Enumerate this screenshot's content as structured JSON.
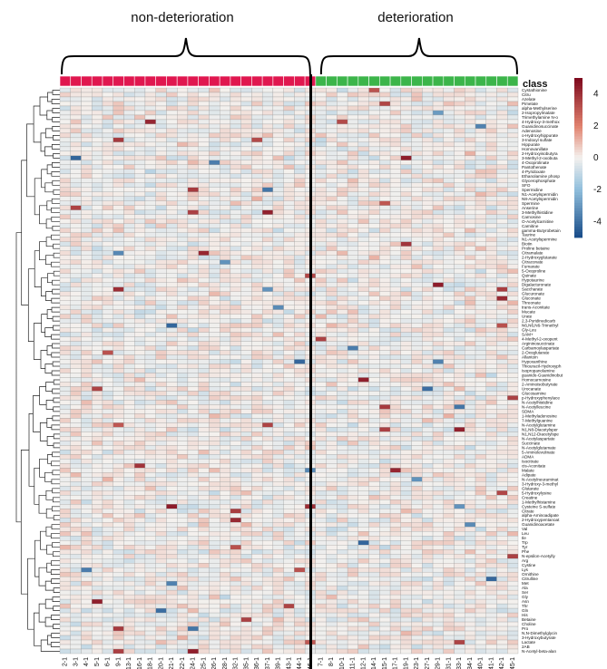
{
  "chart_data": {
    "type": "heatmap",
    "group_labels": [
      "non-deterioration",
      "deterioration"
    ],
    "annotation_title": "class",
    "class_colors": {
      "non-deterioration": "#e0174f",
      "deterioration": "#3cb54a"
    },
    "colorscale": {
      "low": "#1a4e8a",
      "mid": "#f4f1ee",
      "high": "#7f0b1f",
      "ticks": [
        4,
        2,
        0,
        -2,
        -4
      ],
      "range": [
        -5,
        5
      ]
    },
    "columns_non_deterioration": [
      "2-1",
      "3-1",
      "4-1",
      "5-1",
      "6-1",
      "9-1",
      "13-1",
      "16-1",
      "18-1",
      "20-1",
      "21-1",
      "22-1",
      "24-1",
      "25-1",
      "26-1",
      "28-1",
      "32-1",
      "35-1",
      "36-1",
      "37-1",
      "39-1",
      "43-1",
      "44-1",
      "46-1"
    ],
    "columns_deterioration": [
      "7-1",
      "8-1",
      "10-1",
      "11-1",
      "12-1",
      "14-1",
      "15-1",
      "17-1",
      "19-1",
      "23-1",
      "27-1",
      "29-1",
      "31-1",
      "33-1",
      "34-1",
      "40-1",
      "41-1",
      "42-1",
      "45-1"
    ],
    "rows": [
      "Cystathionine",
      "Citru",
      "Azelate",
      "Pimelate",
      "alpha-Methylserine",
      "2-Isopropylmalate",
      "Trimethylamine N-o",
      "4-Hydroxy-3-methox",
      "Guanidinosuccinate",
      "Adenosine",
      "o-Hydroxyhippurate",
      "3-Indoxyl sulfate",
      "Hippurate",
      "Homovanillate",
      "2-Hydroxyisobutyra",
      "3-Methyl-2-oxobuta",
      "4-Oxoprolinate",
      "Pantothenate",
      "4-Pyridoxate",
      "Ethanolamine phosp",
      "Glycerophosphate",
      "SFO",
      "Spermidine",
      "N1-Acetylspermidin",
      "N8-Acetylspermidin",
      "Spermine",
      "Anserine",
      "3-Methylhistidine",
      "Carnosine",
      "O-Acetylcarnitine",
      "Carnitine",
      "gamma-Butyrobetain",
      "Taurine",
      "N1-Acetylspermine",
      "Biotin",
      "Proline betaine",
      "Citramalate",
      "2-Hydroxyglutarate",
      "Citraconate",
      "Fumarate",
      "5-Oxoproline",
      "Quinate",
      "Hypotaurine",
      "Digalacturonate",
      "Saccharate",
      "Glucuronate",
      "Gluconate",
      "Threonate",
      "trans-Aconitate",
      "Mucate",
      "Urate",
      "2,3-Pyridinedicarb",
      "N6,N6,N6-Trimethyl",
      "Gly-Leu",
      "SAM+",
      "4-Methyl-2-oxopent",
      "Argininosuccinate",
      "Carbamoylaspartate",
      "2-Oxoglutarate",
      "Allantoin",
      "Hypoxanthine",
      "Thiouracil-Hydroxyph",
      "Isopropanolamine",
      "guanido-Guanidinobut",
      "Homocarnosine",
      "2-Aminoisobutyrate",
      "Urocanate",
      "Glucosamine",
      "p-Hydroxyphenylace",
      "N-Acetylhistidine",
      "N-Acetylleucine",
      "SDMA",
      "1-Methyladenosine",
      "7-Methylguanine",
      "N-Acetylglutamine",
      "N1,N8-Diacetylsper",
      "N1,N12-Diacetylspe",
      "N-Acetylaspartate",
      "Succinate",
      "N-Acetylglutamate",
      "5-Aminolevulinate",
      "ADMA",
      "Isocitrate",
      "cis-Aconitate",
      "Malate",
      "Adipate",
      "N-Acetylneuraminat",
      "3-Hydroxy-3-methyl",
      "Glutarate",
      "5-Hydroxylysine",
      "Creatine",
      "1-Methylhistamine",
      "Cysteine S-sulfate",
      "Citrate",
      "alpha-Aminoadipate",
      "2-Hydroxypentanoat",
      "Guanidinoacetate",
      "Val",
      "Leu",
      "Ile",
      "Trp",
      "Tyr",
      "Phe",
      "N-epsilon-Acetylly",
      "Arg",
      "Cystine",
      "Lys",
      "Ornithine",
      "Citrulline",
      "Met",
      "Ala",
      "Ser",
      "Gly",
      "Asn",
      "Thr",
      "Gln",
      "His",
      "Betaine",
      "Choline",
      "Pro",
      "N,N-Dimethylglycin",
      "3-Hydroxybutyrate",
      "Lactate",
      "2AB",
      "N-Acetyl-beta-alan"
    ]
  }
}
